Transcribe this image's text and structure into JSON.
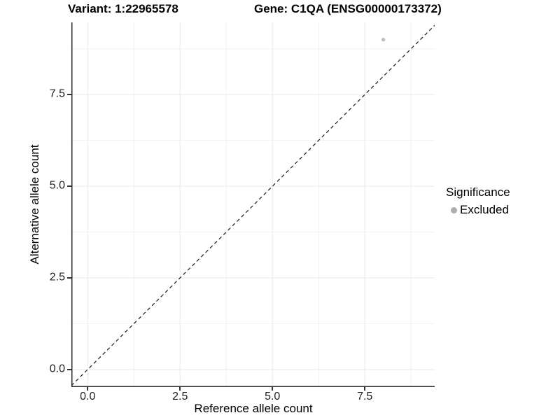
{
  "figure": {
    "title_left": "Variant: 1:22965578",
    "title_right": "Gene: C1QA (ENSG00000173372)"
  },
  "chart_data": {
    "type": "scatter",
    "title": "Variant: 1:22965578 | Gene: C1QA (ENSG00000173372)",
    "xlabel": "Reference allele count",
    "ylabel": "Alternative allele count",
    "xlim": [
      -0.44,
      9.39
    ],
    "ylim": [
      -0.48,
      9.47
    ],
    "x_ticks": [
      0,
      2.5,
      5,
      7.5
    ],
    "x_tick_labels": [
      "0.0",
      "2.5",
      "5.0",
      "7.5"
    ],
    "y_ticks": [
      0,
      2.5,
      5,
      7.5
    ],
    "y_tick_labels": [
      "0.0",
      "2.5",
      "5.0",
      "7.5"
    ],
    "minor_breaks": [
      1.25,
      3.75,
      6.25,
      8.75
    ],
    "grid": "major+minor",
    "abline": {
      "type": "identity",
      "slope": 1,
      "intercept": 0,
      "style": "dashed",
      "color": "#1a1a1a"
    },
    "series": [
      {
        "name": "Excluded",
        "marker": "circle",
        "color": "#bdbdbd",
        "points": [
          {
            "x": 8,
            "y": 9
          }
        ]
      }
    ],
    "legend": {
      "title": "Significance",
      "position": "right",
      "entries": [
        {
          "label": "Excluded",
          "marker": "circle",
          "color": "#aeaeae"
        }
      ]
    },
    "colors": {
      "background": "#ffffff",
      "axis_line": "#2a2a2a",
      "grid_major": "#e9e9e9",
      "grid_minor": "#f2f2f2",
      "text": "#000000",
      "tick_text": "#1f1f1f"
    }
  }
}
